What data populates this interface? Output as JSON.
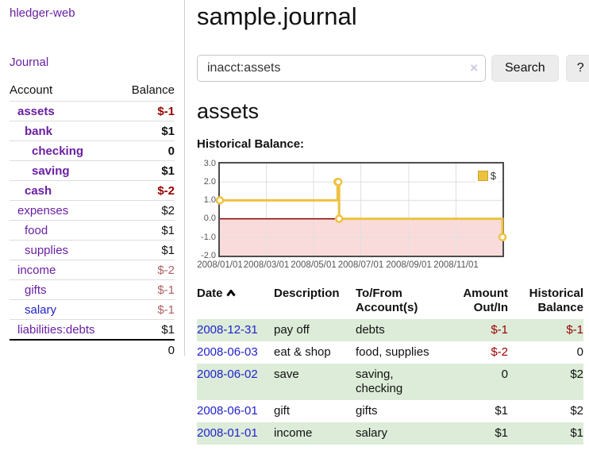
{
  "brand": "hledger-web",
  "nav": {
    "journal": "Journal"
  },
  "sidebar": {
    "account_header": "Account",
    "balance_header": "Balance",
    "rows": [
      {
        "account": "assets",
        "balance": "$-1",
        "indent": 1,
        "bold": true,
        "tone": "neg-strong",
        "link": "purple"
      },
      {
        "account": "bank",
        "balance": "$1",
        "indent": 2,
        "bold": true,
        "tone": "pos",
        "link": "purple"
      },
      {
        "account": "checking",
        "balance": "0",
        "indent": 3,
        "bold": true,
        "tone": "pos",
        "link": "purple"
      },
      {
        "account": "saving",
        "balance": "$1",
        "indent": 3,
        "bold": true,
        "tone": "pos",
        "link": "purple"
      },
      {
        "account": "cash",
        "balance": "$-2",
        "indent": 2,
        "bold": true,
        "tone": "neg-strong",
        "link": "purple"
      },
      {
        "account": "expenses",
        "balance": "$2",
        "indent": 1,
        "bold": false,
        "tone": "pos",
        "link": "purple"
      },
      {
        "account": "food",
        "balance": "$1",
        "indent": 2,
        "bold": false,
        "tone": "pos",
        "link": "purple"
      },
      {
        "account": "supplies",
        "balance": "$1",
        "indent": 2,
        "bold": false,
        "tone": "pos",
        "link": "purple"
      },
      {
        "account": "income",
        "balance": "$-2",
        "indent": 1,
        "bold": false,
        "tone": "neg-muted",
        "link": "purple"
      },
      {
        "account": "gifts",
        "balance": "$-1",
        "indent": 2,
        "bold": false,
        "tone": "neg-muted",
        "link": "purple"
      },
      {
        "account": "salary",
        "balance": "$-1",
        "indent": 2,
        "bold": false,
        "tone": "neg-muted",
        "link": "blue"
      },
      {
        "account": "liabilities:debts",
        "balance": "$1",
        "indent": 1,
        "bold": false,
        "tone": "pos",
        "link": "purple"
      }
    ],
    "total": "0"
  },
  "main": {
    "title": "sample.journal",
    "search": {
      "value": "inacct:assets",
      "clear_label": "×",
      "search_button": "Search",
      "help_button": "?"
    },
    "section_heading": "assets",
    "chart_heading": "Historical Balance:"
  },
  "chart_data": {
    "type": "line",
    "step": true,
    "title": "Historical Balance",
    "series": [
      {
        "name": "$",
        "color": "#edc240",
        "points": [
          [
            "2008-01-01",
            1
          ],
          [
            "2008-06-01",
            2
          ],
          [
            "2008-06-02",
            2
          ],
          [
            "2008-06-03",
            0
          ],
          [
            "2008-12-31",
            -1
          ]
        ]
      }
    ],
    "xlim": [
      "2008-01-01",
      "2008-12-31"
    ],
    "ylim": [
      -2,
      3
    ],
    "x_ticks": [
      "2008/01/01",
      "2008/03/01",
      "2008/05/01",
      "2008/07/01",
      "2008/09/01",
      "2008/11/01"
    ],
    "y_ticks": [
      "3.0",
      "2.0",
      "1.0",
      "0.0",
      "-1.0",
      "-2.0"
    ],
    "grid": true,
    "legend_position": "top-right",
    "negative_region_color": "#fadbdb",
    "zero_line_color": "#8b0000",
    "grid_color": "#e0e0e0",
    "marker_fill": "#ffffff"
  },
  "transactions": {
    "headers": {
      "date": "Date",
      "description": "Description",
      "tofrom": "To/From Account(s)",
      "amount": "Amount Out/In",
      "balance": "Historical Balance"
    },
    "rows": [
      {
        "date": "2008-12-31",
        "description": "pay off",
        "tofrom": "debts",
        "amount": "$-1",
        "amount_tone": "neg",
        "balance": "$-1",
        "balance_tone": "neg"
      },
      {
        "date": "2008-06-03",
        "description": "eat & shop",
        "tofrom": "food, supplies",
        "amount": "$-2",
        "amount_tone": "neg",
        "balance": "0",
        "balance_tone": "pos"
      },
      {
        "date": "2008-06-02",
        "description": "save",
        "tofrom": "saving, checking",
        "amount": "0",
        "amount_tone": "pos",
        "balance": "$2",
        "balance_tone": "pos"
      },
      {
        "date": "2008-06-01",
        "description": "gift",
        "tofrom": "gifts",
        "amount": "$1",
        "amount_tone": "pos",
        "balance": "$2",
        "balance_tone": "pos"
      },
      {
        "date": "2008-01-01",
        "description": "income",
        "tofrom": "salary",
        "amount": "$1",
        "amount_tone": "pos",
        "balance": "$1",
        "balance_tone": "pos"
      }
    ]
  },
  "colors": {
    "link_purple": "#6a1fa2",
    "link_blue": "#2222cc",
    "negative_strong": "#990000",
    "negative_muted": "#b06060",
    "row_stripe_green": "#dcecd8",
    "chart_gold": "#edc240"
  }
}
